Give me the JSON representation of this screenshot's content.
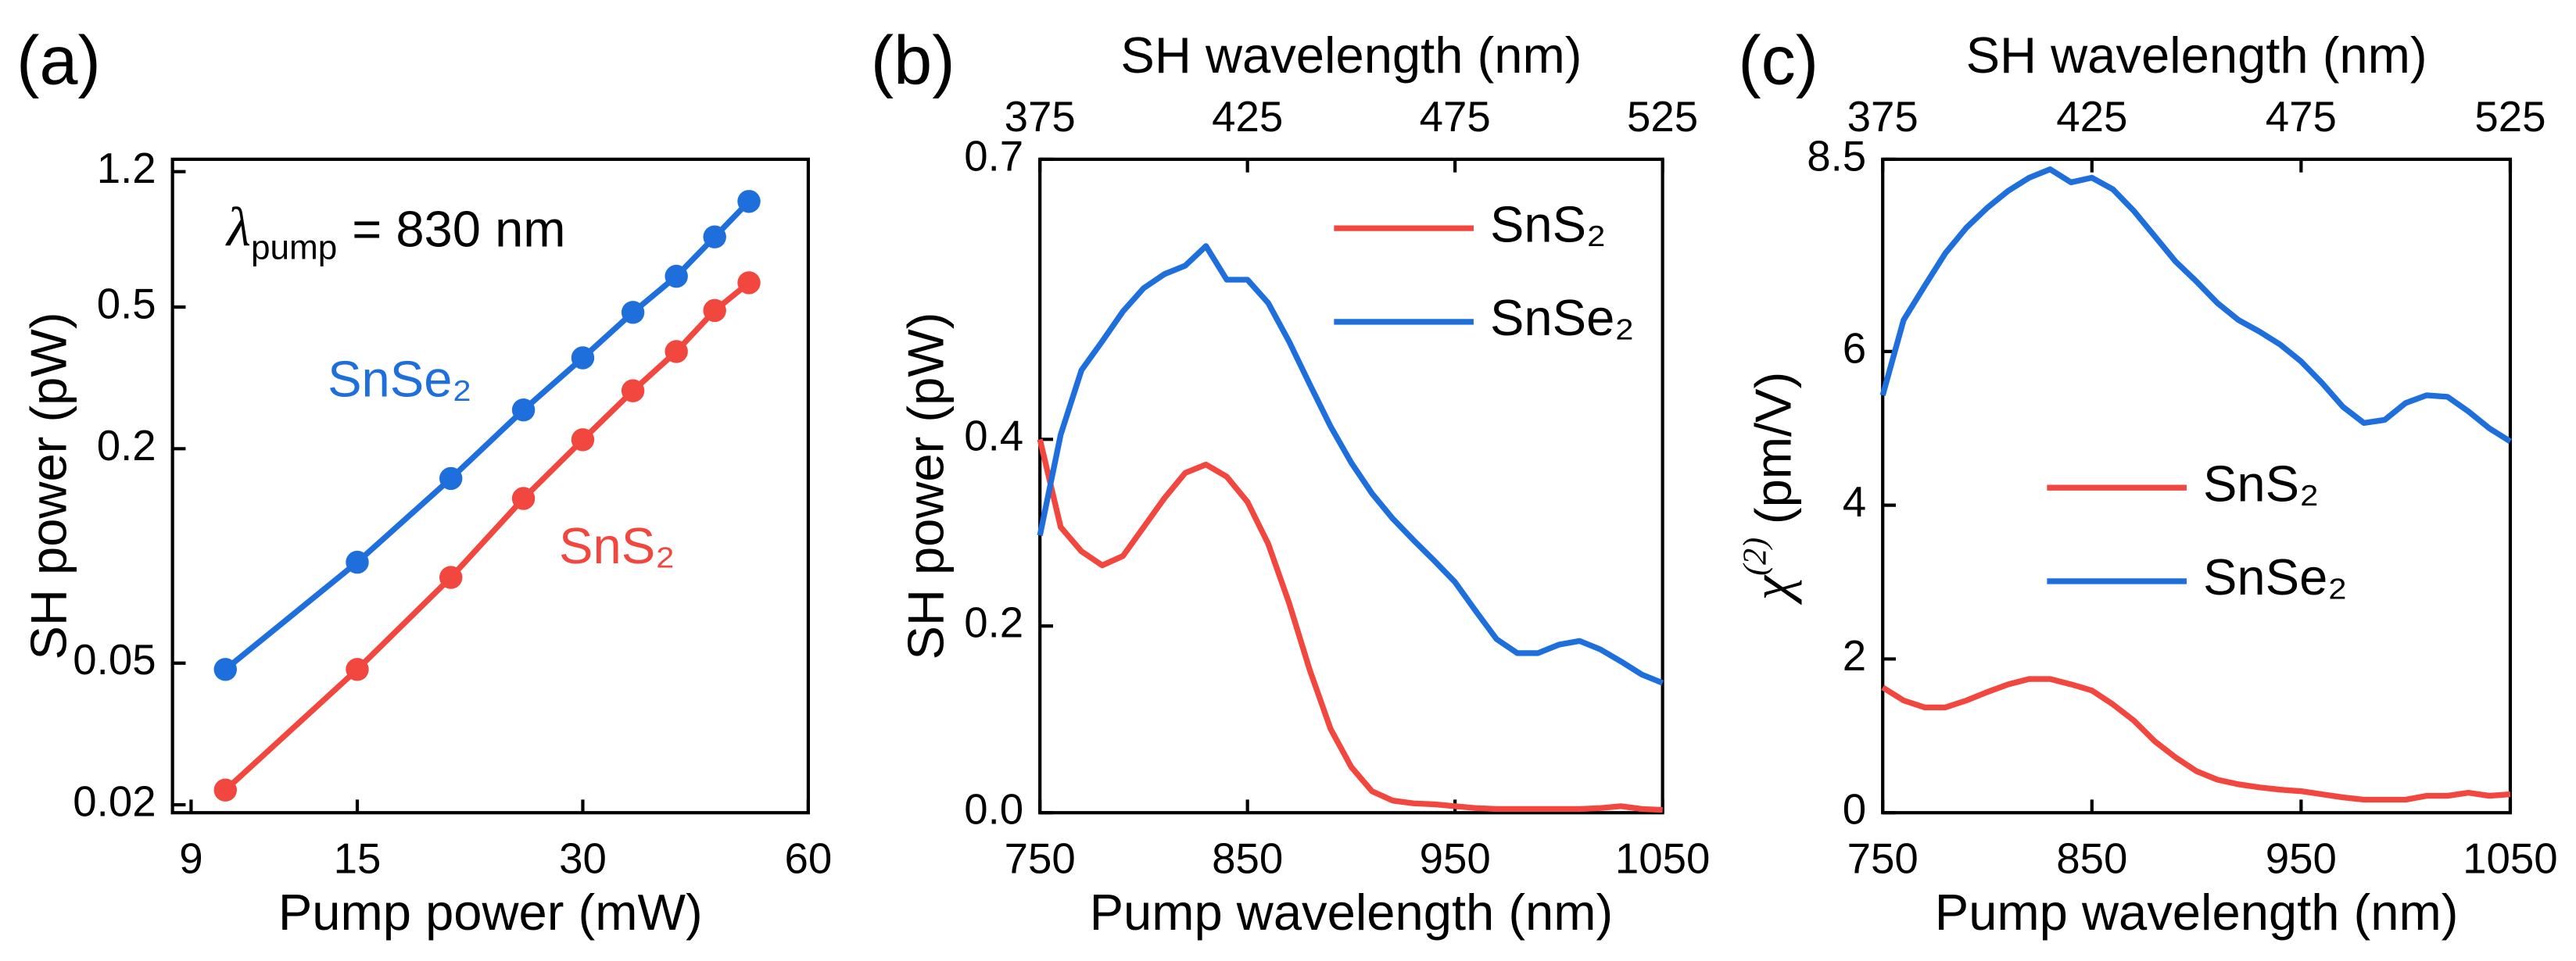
{
  "chart_data": [
    {
      "type": "scatter-line",
      "panel": "(a)",
      "x_label": "Pump power (mW)",
      "y_label": "SH power (pW)",
      "x": [
        10,
        15,
        20,
        25,
        30,
        35,
        40,
        45,
        50
      ],
      "series": [
        {
          "name": "SnSe₂",
          "color": "#1e6fdc",
          "values": [
            0.048,
            0.096,
            0.165,
            0.257,
            0.36,
            0.483,
            0.61,
            0.787,
            0.99
          ]
        },
        {
          "name": "SnS₂",
          "color": "#f2473f",
          "values": [
            0.022,
            0.048,
            0.087,
            0.145,
            0.212,
            0.291,
            0.375,
            0.489,
            0.585
          ]
        }
      ],
      "xlim": [
        8.5,
        60
      ],
      "xticks": [
        9,
        15,
        30,
        60
      ],
      "xscale": "log",
      "ylim": [
        0.019,
        1.3
      ],
      "yticks": [
        0.02,
        0.05,
        0.2,
        0.5,
        1.2
      ],
      "yscale": "log",
      "legend": "inline",
      "annotation": {
        "symbol": "λ",
        "subscript": "pump",
        "text": "= 830 nm"
      }
    },
    {
      "type": "line",
      "panel": "(b)",
      "x_label": "Pump wavelength (nm)",
      "x2_label": "SH wavelength (nm)",
      "y_label": "SH power (pW)",
      "x": [
        750,
        760,
        770,
        780,
        790,
        800,
        810,
        820,
        830,
        840,
        850,
        860,
        870,
        880,
        890,
        900,
        910,
        920,
        930,
        940,
        950,
        960,
        970,
        980,
        990,
        1000,
        1010,
        1020,
        1030,
        1040,
        1050
      ],
      "series": [
        {
          "name": "SnS₂",
          "color": "#f2473f",
          "values": [
            0.4,
            0.306,
            0.28,
            0.265,
            0.275,
            0.306,
            0.337,
            0.364,
            0.373,
            0.36,
            0.333,
            0.288,
            0.225,
            0.153,
            0.09,
            0.049,
            0.023,
            0.013,
            0.01,
            0.009,
            0.007,
            0.005,
            0.004,
            0.004,
            0.004,
            0.004,
            0.004,
            0.005,
            0.007,
            0.004,
            0.003
          ]
        },
        {
          "name": "SnSe₂",
          "color": "#1e6fdc",
          "values": [
            0.297,
            0.405,
            0.474,
            0.505,
            0.537,
            0.562,
            0.577,
            0.586,
            0.607,
            0.571,
            0.571,
            0.546,
            0.505,
            0.459,
            0.414,
            0.375,
            0.342,
            0.315,
            0.292,
            0.27,
            0.247,
            0.216,
            0.186,
            0.171,
            0.171,
            0.18,
            0.184,
            0.175,
            0.162,
            0.148,
            0.139
          ]
        }
      ],
      "xlim": [
        750,
        1050
      ],
      "xticks": [
        750,
        850,
        950,
        1050
      ],
      "x2lim": [
        375,
        525
      ],
      "x2ticks": [
        375,
        425,
        475,
        525
      ],
      "ylim": [
        0,
        0.7
      ],
      "yticks": [
        {
          "value": 0,
          "label": "0.0"
        },
        0.2,
        0.4,
        0.7
      ],
      "legend": "upper right"
    },
    {
      "type": "line",
      "panel": "(c)",
      "x_label": "Pump wavelength (nm)",
      "x2_label": "SH wavelength (nm)",
      "y_label": {
        "symbol": "χ",
        "superscript": "(2)",
        "unit": "(pm/V)"
      },
      "x": [
        750,
        760,
        770,
        780,
        790,
        800,
        810,
        820,
        830,
        840,
        850,
        860,
        870,
        880,
        890,
        900,
        910,
        920,
        930,
        940,
        950,
        960,
        970,
        980,
        990,
        1000,
        1010,
        1020,
        1030,
        1040,
        1050
      ],
      "series": [
        {
          "name": "SnS₂",
          "color": "#f2473f",
          "values": [
            1.63,
            1.46,
            1.37,
            1.37,
            1.46,
            1.57,
            1.67,
            1.74,
            1.74,
            1.67,
            1.59,
            1.41,
            1.2,
            0.93,
            0.72,
            0.54,
            0.43,
            0.37,
            0.33,
            0.3,
            0.28,
            0.24,
            0.2,
            0.17,
            0.17,
            0.17,
            0.22,
            0.22,
            0.26,
            0.22,
            0.24
          ]
        },
        {
          "name": "SnSe₂",
          "color": "#1e6fdc",
          "values": [
            5.43,
            6.41,
            6.85,
            7.28,
            7.61,
            7.87,
            8.09,
            8.26,
            8.37,
            8.2,
            8.26,
            8.11,
            7.83,
            7.5,
            7.17,
            6.91,
            6.63,
            6.41,
            6.26,
            6.09,
            5.87,
            5.59,
            5.28,
            5.07,
            5.11,
            5.33,
            5.43,
            5.41,
            5.22,
            5.0,
            4.83
          ]
        }
      ],
      "xlim": [
        750,
        1050
      ],
      "xticks": [
        750,
        850,
        950,
        1050
      ],
      "x2lim": [
        375,
        525
      ],
      "x2ticks": [
        375,
        425,
        475,
        525
      ],
      "ylim": [
        0,
        8.5
      ],
      "yticks": [
        0,
        2,
        4,
        6,
        8.5
      ],
      "legend": "lower center"
    }
  ]
}
